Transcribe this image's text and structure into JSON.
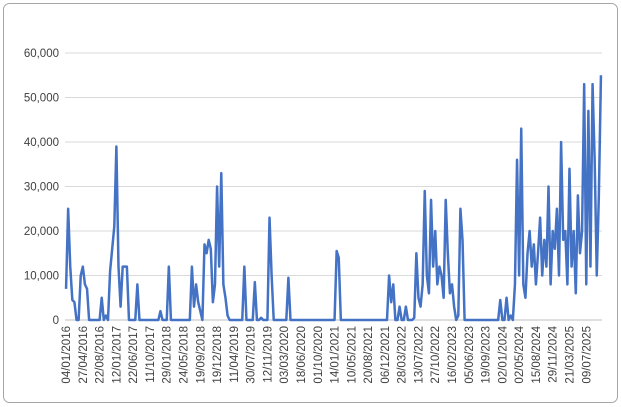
{
  "chart_data": {
    "type": "line",
    "categories": [
      "04/01/2016",
      null,
      null,
      null,
      null,
      null,
      null,
      null,
      "27/04/2016",
      null,
      null,
      null,
      null,
      null,
      null,
      null,
      "22/08/2016",
      null,
      null,
      null,
      null,
      null,
      null,
      null,
      "12/01/2017",
      null,
      null,
      null,
      null,
      null,
      null,
      null,
      "22/06/2017",
      null,
      null,
      null,
      null,
      null,
      null,
      null,
      "11/10/2017",
      null,
      null,
      null,
      null,
      null,
      null,
      null,
      "29/01/2018",
      null,
      null,
      null,
      null,
      null,
      null,
      null,
      "24/05/2018",
      null,
      null,
      null,
      null,
      null,
      null,
      null,
      "19/09/2018",
      null,
      null,
      null,
      null,
      null,
      null,
      null,
      "19/12/2018",
      null,
      null,
      null,
      null,
      null,
      null,
      null,
      "11/04/2019",
      null,
      null,
      null,
      null,
      null,
      null,
      null,
      "30/07/2019",
      null,
      null,
      null,
      null,
      null,
      null,
      null,
      "12/11/2019",
      null,
      null,
      null,
      null,
      null,
      null,
      null,
      "03/03/2020",
      null,
      null,
      null,
      null,
      null,
      null,
      null,
      "18/06/2020",
      null,
      null,
      null,
      null,
      null,
      null,
      null,
      "01/10/2020",
      null,
      null,
      null,
      null,
      null,
      null,
      null,
      "14/01/2021",
      null,
      null,
      null,
      null,
      null,
      null,
      null,
      "10/05/2021",
      null,
      null,
      null,
      null,
      null,
      null,
      null,
      "20/08/2021",
      null,
      null,
      null,
      null,
      null,
      null,
      null,
      "06/12/2021",
      null,
      null,
      null,
      null,
      null,
      null,
      null,
      "28/03/2022",
      null,
      null,
      null,
      null,
      null,
      null,
      null,
      "13/07/2022",
      null,
      null,
      null,
      null,
      null,
      null,
      null,
      "27/10/2022",
      null,
      null,
      null,
      null,
      null,
      null,
      null,
      "16/02/2023",
      null,
      null,
      null,
      null,
      null,
      null,
      null,
      "05/06/2023",
      null,
      null,
      null,
      null,
      null,
      null,
      null,
      "19/09/2023",
      null,
      null,
      null,
      null,
      null,
      null,
      null,
      "02/01/2024",
      null,
      null,
      null,
      null,
      null,
      null,
      null,
      "02/05/2024",
      null,
      null,
      null,
      null,
      null,
      null,
      null,
      "15/08/2024",
      null,
      null,
      null,
      null,
      null,
      null,
      null,
      "29/11/2024",
      null,
      null,
      null,
      null,
      null,
      null,
      null,
      "21/03/2025",
      null,
      null,
      null,
      null,
      null,
      null,
      null,
      "09/07/2025",
      null,
      null,
      null,
      null,
      null,
      null,
      null
    ],
    "values": [
      7000,
      25000,
      12000,
      4500,
      4000,
      0,
      0,
      10000,
      12000,
      8000,
      7000,
      0,
      0,
      0,
      0,
      0,
      0,
      5000,
      0,
      1000,
      0,
      11000,
      16000,
      21000,
      39000,
      12000,
      3000,
      12000,
      12000,
      12000,
      0,
      0,
      0,
      0,
      8000,
      0,
      0,
      0,
      0,
      0,
      0,
      0,
      0,
      0,
      0,
      2000,
      0,
      0,
      0,
      12000,
      0,
      0,
      0,
      0,
      0,
      0,
      0,
      0,
      0,
      0,
      12000,
      3000,
      8000,
      4000,
      2000,
      0,
      17000,
      15000,
      18000,
      16000,
      4000,
      8000,
      30000,
      12000,
      33000,
      8000,
      5000,
      1000,
      0,
      0,
      0,
      0,
      0,
      0,
      0,
      12000,
      0,
      0,
      0,
      0,
      8500,
      0,
      0,
      500,
      0,
      0,
      0,
      23000,
      10000,
      0,
      0,
      0,
      0,
      0,
      0,
      0,
      9500,
      0,
      0,
      0,
      0,
      0,
      0,
      0,
      0,
      0,
      0,
      0,
      0,
      0,
      0,
      0,
      0,
      0,
      0,
      0,
      0,
      0,
      0,
      15500,
      14000,
      0,
      0,
      0,
      0,
      0,
      0,
      0,
      0,
      0,
      0,
      0,
      0,
      0,
      0,
      0,
      0,
      0,
      0,
      0,
      0,
      0,
      0,
      0,
      10000,
      4000,
      8000,
      0,
      0,
      3000,
      0,
      0,
      3000,
      0,
      0,
      0,
      500,
      15000,
      5000,
      3000,
      8000,
      29000,
      10000,
      6000,
      27000,
      12000,
      20000,
      8000,
      12000,
      10000,
      5000,
      27000,
      15000,
      6000,
      8000,
      3000,
      0,
      1000,
      25000,
      18000,
      0,
      0,
      0,
      0,
      0,
      0,
      0,
      0,
      0,
      0,
      0,
      0,
      0,
      0,
      0,
      0,
      0,
      4500,
      0,
      0,
      5000,
      0,
      1000,
      0,
      8000,
      36000,
      10000,
      43000,
      8000,
      5000,
      15000,
      20000,
      12000,
      17000,
      8000,
      15000,
      23000,
      10000,
      18000,
      12000,
      30000,
      8000,
      20000,
      16000,
      25000,
      10000,
      40000,
      18000,
      20000,
      8000,
      34000,
      12000,
      20000,
      6000,
      28000,
      15000,
      20000,
      53000,
      8000,
      47000,
      12000,
      53000,
      36000,
      10000,
      28000,
      55000
    ],
    "color": "#4472c4",
    "ylim": [
      0,
      60000
    ],
    "yticks": [
      0,
      {
        "value": 10000,
        "label": "10,000"
      },
      {
        "value": 20000,
        "label": "20,000"
      },
      {
        "value": 30000,
        "label": "30,000"
      },
      {
        "value": 40000,
        "label": "40,000"
      },
      {
        "value": 50000,
        "label": "50,000"
      },
      {
        "value": 60000,
        "label": "60,000"
      }
    ],
    "grid": true
  }
}
